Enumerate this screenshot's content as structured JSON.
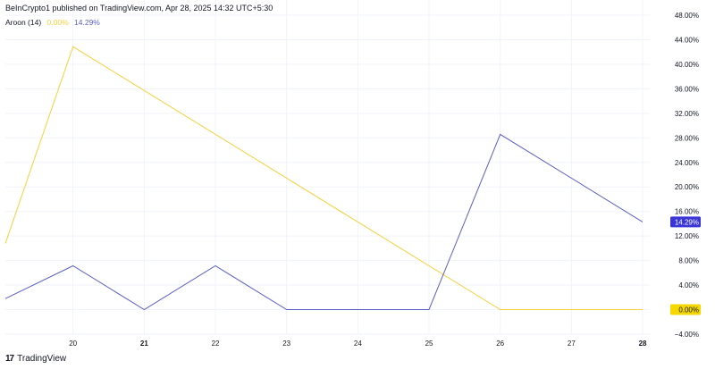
{
  "header": {
    "text": "BeInCrypto1 published on TradingView.com, Apr 28, 2025 14:32 UTC+5:30"
  },
  "legend": {
    "label": "Aroon (14)",
    "up_value": "0.00%",
    "down_value": "14.29%"
  },
  "footer": {
    "brand": "TradingView",
    "logo_icon": "tradingview-logo-icon"
  },
  "colors": {
    "aroon_up": "#f5d03b",
    "aroon_down": "#5b5fc7",
    "badge_up_bg": "#f5d800",
    "badge_down_bg": "#3a35d6"
  },
  "chart_data": {
    "type": "line",
    "x": [
      19.05,
      20,
      21,
      22,
      23,
      24,
      25,
      26,
      27,
      28
    ],
    "x_tick_labels": [
      {
        "x": 20,
        "label": "20",
        "bold": false
      },
      {
        "x": 21,
        "label": "21",
        "bold": true
      },
      {
        "x": 22,
        "label": "22",
        "bold": false
      },
      {
        "x": 23,
        "label": "23",
        "bold": false
      },
      {
        "x": 24,
        "label": "24",
        "bold": false
      },
      {
        "x": 25,
        "label": "25",
        "bold": false
      },
      {
        "x": 26,
        "label": "26",
        "bold": false
      },
      {
        "x": 27,
        "label": "27",
        "bold": false
      },
      {
        "x": 28,
        "label": "28",
        "bold": true
      }
    ],
    "series": [
      {
        "key": "aroon_up",
        "points": [
          [
            19.05,
            10.8
          ],
          [
            20,
            42.86
          ],
          [
            26,
            0
          ],
          [
            28,
            0
          ]
        ]
      },
      {
        "key": "aroon_down",
        "points": [
          [
            19.05,
            1.8
          ],
          [
            20,
            7.14
          ],
          [
            21,
            0
          ],
          [
            22,
            7.14
          ],
          [
            23,
            0
          ],
          [
            25,
            0
          ],
          [
            26,
            28.57
          ],
          [
            28,
            14.29
          ]
        ]
      }
    ],
    "y_ticks": [
      "48.00%",
      "44.00%",
      "40.00%",
      "36.00%",
      "32.00%",
      "28.00%",
      "24.00%",
      "20.00%",
      "16.00%",
      "12.00%",
      "8.00%",
      "4.00%",
      "0.00%",
      "−4.00%"
    ],
    "y_tick_values": [
      48,
      44,
      40,
      36,
      32,
      28,
      24,
      20,
      16,
      12,
      8,
      4,
      0,
      -4
    ],
    "ylim": [
      -4,
      48
    ],
    "xlim": [
      19.05,
      28.1
    ],
    "price_badges": [
      {
        "series": "aroon_down",
        "value": 14.29,
        "label": "14.29%"
      },
      {
        "series": "aroon_up",
        "value": 0,
        "label": "0.00%"
      }
    ]
  }
}
